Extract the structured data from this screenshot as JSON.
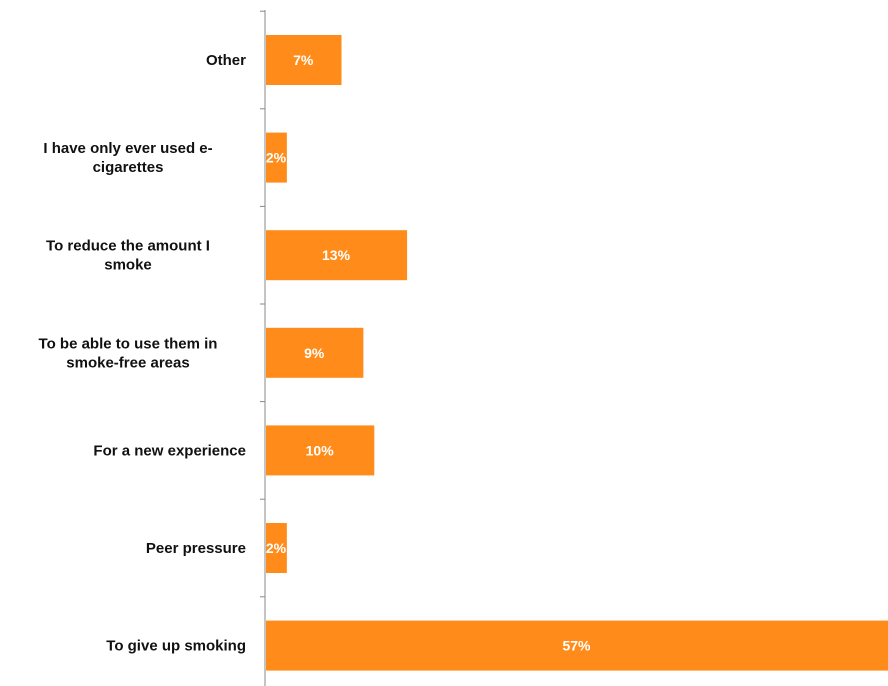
{
  "chart_data": {
    "type": "bar",
    "orientation": "horizontal",
    "categories": [
      "Other",
      "I have only ever used e-cigarettes",
      "To reduce the amount I smoke",
      "To be able to use them in smoke-free areas",
      "For a new experience",
      "Peer pressure",
      "To give up smoking"
    ],
    "category_lines": [
      [
        "Other"
      ],
      [
        "I have only ever used e-",
        "cigarettes"
      ],
      [
        "To reduce the amount I",
        "smoke"
      ],
      [
        "To be able to use them in",
        "smoke-free areas"
      ],
      [
        "For a new experience"
      ],
      [
        "Peer pressure"
      ],
      [
        "To give up smoking"
      ]
    ],
    "values": [
      7,
      2,
      13,
      9,
      10,
      2,
      57
    ],
    "value_labels": [
      "7%",
      "2%",
      "13%",
      "9%",
      "10%",
      "2%",
      "57%"
    ],
    "title": "",
    "xlabel": "",
    "ylabel": "",
    "xlim": [
      0,
      57
    ],
    "grid": false,
    "legend": "none",
    "bar_color": "#FF8C1A",
    "value_label_color": "#FFFFFF",
    "axis_color": "#888888"
  }
}
